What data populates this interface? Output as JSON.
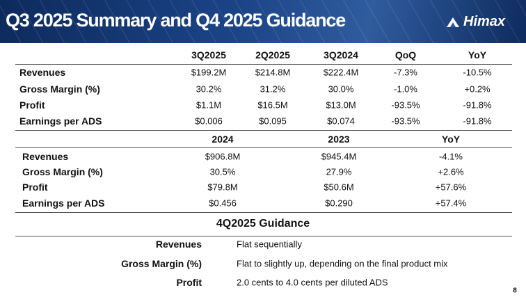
{
  "header": {
    "title": "Q3 2025 Summary and Q4 2025 Guidance",
    "logo": "Himax"
  },
  "quarterly_table": {
    "columns": [
      "3Q2025",
      "2Q2025",
      "3Q2024",
      "QoQ",
      "YoY"
    ],
    "rows": [
      [
        "Revenues",
        "$199.2M",
        "$214.8M",
        "$222.4M",
        "-7.3%",
        "-10.5%"
      ],
      [
        "Gross Margin (%)",
        "30.2%",
        "31.2%",
        "30.0%",
        "-1.0%",
        "+0.2%"
      ],
      [
        "Profit",
        "$1.1M",
        "$16.5M",
        "$13.0M",
        "-93.5%",
        "-91.8%"
      ],
      [
        "Earnings per ADS",
        "$0.006",
        "$0.095",
        "$0.074",
        "-93.5%",
        "-91.8%"
      ]
    ]
  },
  "annual_table": {
    "columns": [
      "2024",
      "2023",
      "YoY"
    ],
    "rows": [
      [
        "Revenues",
        "$906.8M",
        "$945.4M",
        "-4.1%"
      ],
      [
        "Gross Margin (%)",
        "30.5%",
        "27.9%",
        "+2.6%"
      ],
      [
        "Profit",
        "$79.8M",
        "$50.6M",
        "+57.6%"
      ],
      [
        "Earnings per ADS",
        "$0.456",
        "$0.290",
        "+57.4%"
      ]
    ]
  },
  "guidance": {
    "title": "4Q2025 Guidance",
    "rows": [
      [
        "Revenues",
        "Flat sequentially"
      ],
      [
        "Gross Margin (%)",
        "Flat to slightly up, depending on the final product mix"
      ],
      [
        "Profit",
        "2.0 cents to 4.0 cents per diluted ADS"
      ]
    ]
  },
  "page_number": "8"
}
